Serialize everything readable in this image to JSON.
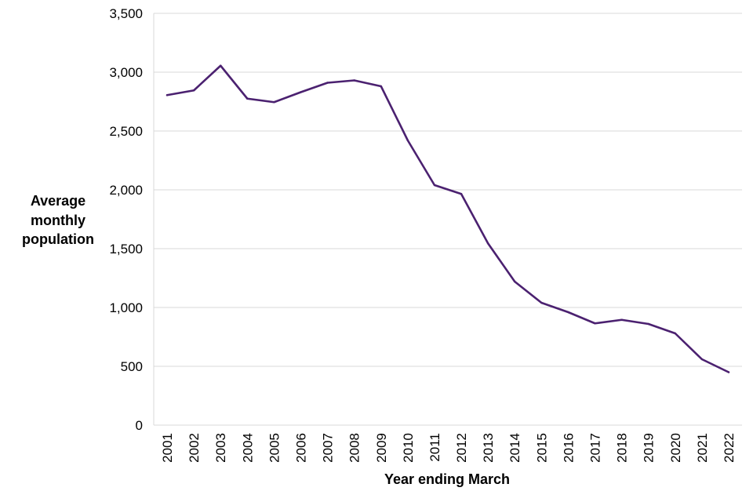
{
  "chart_data": {
    "type": "line",
    "title": "",
    "xlabel": "Year ending March",
    "ylabel_lines": [
      "Average",
      "monthly",
      "population"
    ],
    "ylim": [
      0,
      3500
    ],
    "ytick_values": [
      0,
      500,
      1000,
      1500,
      2000,
      2500,
      3000,
      3500
    ],
    "ytick_labels": [
      "0",
      "500",
      "1,000",
      "1,500",
      "2,000",
      "2,500",
      "3,000",
      "3,500"
    ],
    "grid": true,
    "legend": "none",
    "categories": [
      "2001",
      "2002",
      "2003",
      "2004",
      "2005",
      "2006",
      "2007",
      "2008",
      "2009",
      "2010",
      "2011",
      "2012",
      "2013",
      "2014",
      "2015",
      "2016",
      "2017",
      "2018",
      "2019",
      "2020",
      "2021",
      "2022"
    ],
    "series": [
      {
        "name": "Average monthly population",
        "color": "#4b2170",
        "values": [
          2805,
          2845,
          3055,
          2775,
          2745,
          2830,
          2910,
          2930,
          2880,
          2420,
          2040,
          1965,
          1545,
          1220,
          1040,
          960,
          865,
          895,
          860,
          780,
          560,
          450
        ]
      }
    ]
  }
}
